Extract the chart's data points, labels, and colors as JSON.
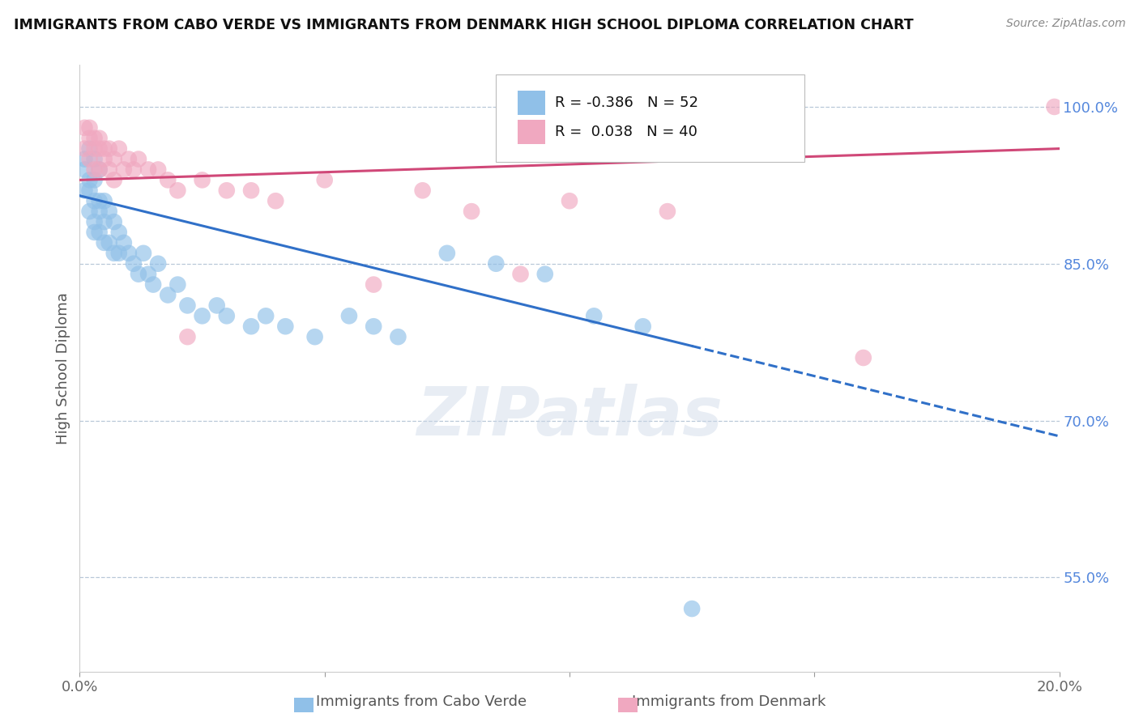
{
  "title": "IMMIGRANTS FROM CABO VERDE VS IMMIGRANTS FROM DENMARK HIGH SCHOOL DIPLOMA CORRELATION CHART",
  "source": "Source: ZipAtlas.com",
  "ylabel": "High School Diploma",
  "xlim": [
    0.0,
    0.2
  ],
  "ylim": [
    0.46,
    1.04
  ],
  "xtick_positions": [
    0.0,
    0.05,
    0.1,
    0.15,
    0.2
  ],
  "xtick_labels": [
    "0.0%",
    "",
    "",
    "",
    "20.0%"
  ],
  "ytick_positions": [
    0.55,
    0.7,
    0.85,
    1.0
  ],
  "ytick_labels": [
    "55.0%",
    "70.0%",
    "85.0%",
    "100.0%"
  ],
  "watermark": "ZIPatlas",
  "legend_label1": "Immigrants from Cabo Verde",
  "legend_label2": "Immigrants from Denmark",
  "cabo_verde_color": "#90c0e8",
  "denmark_color": "#f0a8c0",
  "cabo_verde_line_color": "#3070c8",
  "denmark_line_color": "#d04878",
  "cabo_verde_R": -0.386,
  "denmark_R": 0.038,
  "cabo_verde_N": 52,
  "denmark_N": 40,
  "cabo_verde_x": [
    0.001,
    0.001,
    0.001,
    0.002,
    0.002,
    0.002,
    0.002,
    0.003,
    0.003,
    0.003,
    0.003,
    0.003,
    0.004,
    0.004,
    0.004,
    0.004,
    0.005,
    0.005,
    0.005,
    0.006,
    0.006,
    0.007,
    0.007,
    0.008,
    0.008,
    0.009,
    0.01,
    0.011,
    0.012,
    0.013,
    0.014,
    0.015,
    0.016,
    0.018,
    0.02,
    0.022,
    0.025,
    0.028,
    0.03,
    0.035,
    0.038,
    0.042,
    0.048,
    0.055,
    0.06,
    0.065,
    0.075,
    0.085,
    0.095,
    0.105,
    0.115,
    0.125
  ],
  "cabo_verde_y": [
    0.95,
    0.94,
    0.92,
    0.96,
    0.93,
    0.92,
    0.9,
    0.95,
    0.93,
    0.91,
    0.89,
    0.88,
    0.94,
    0.91,
    0.9,
    0.88,
    0.91,
    0.89,
    0.87,
    0.9,
    0.87,
    0.89,
    0.86,
    0.88,
    0.86,
    0.87,
    0.86,
    0.85,
    0.84,
    0.86,
    0.84,
    0.83,
    0.85,
    0.82,
    0.83,
    0.81,
    0.8,
    0.81,
    0.8,
    0.79,
    0.8,
    0.79,
    0.78,
    0.8,
    0.79,
    0.78,
    0.86,
    0.85,
    0.84,
    0.8,
    0.79,
    0.52
  ],
  "denmark_x": [
    0.001,
    0.001,
    0.002,
    0.002,
    0.002,
    0.003,
    0.003,
    0.003,
    0.004,
    0.004,
    0.004,
    0.005,
    0.005,
    0.006,
    0.006,
    0.007,
    0.007,
    0.008,
    0.009,
    0.01,
    0.011,
    0.012,
    0.014,
    0.016,
    0.018,
    0.02,
    0.022,
    0.025,
    0.03,
    0.035,
    0.04,
    0.05,
    0.06,
    0.07,
    0.08,
    0.09,
    0.1,
    0.12,
    0.16,
    0.199
  ],
  "denmark_y": [
    0.98,
    0.96,
    0.98,
    0.97,
    0.95,
    0.97,
    0.96,
    0.94,
    0.97,
    0.96,
    0.94,
    0.96,
    0.95,
    0.96,
    0.94,
    0.95,
    0.93,
    0.96,
    0.94,
    0.95,
    0.94,
    0.95,
    0.94,
    0.94,
    0.93,
    0.92,
    0.78,
    0.93,
    0.92,
    0.92,
    0.91,
    0.93,
    0.83,
    0.92,
    0.9,
    0.84,
    0.91,
    0.9,
    0.76,
    1.0
  ],
  "cv_line_x0": 0.0,
  "cv_line_x_solid_end": 0.125,
  "cv_line_x_dashed_end": 0.2,
  "cv_line_y0": 0.915,
  "cv_line_slope": -1.15,
  "dk_line_x0": 0.0,
  "dk_line_x_end": 0.2,
  "dk_line_y0": 0.93,
  "dk_line_slope": 0.15
}
